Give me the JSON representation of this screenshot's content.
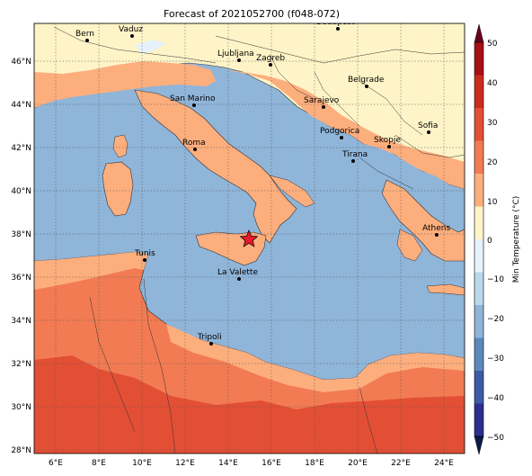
{
  "title": "Forecast of 2021052700 (f048-072)",
  "colorbar": {
    "label": "Min Temperature (°C)",
    "ticks": [
      "50",
      "40",
      "30",
      "20",
      "10",
      "0",
      "−10",
      "−20",
      "−30",
      "−40",
      "−50"
    ],
    "colors": [
      "#67001f",
      "#b2182b",
      "#d6604d",
      "#f4a582",
      "#fddbc7",
      "#f7f7f7",
      "#d1e5f0",
      "#92c5de",
      "#4393c3",
      "#2166ac",
      "#053061"
    ],
    "bands": [
      "#a50f15",
      "#cb2b1f",
      "#e34f35",
      "#f27b53",
      "#fdae7d",
      "#fff4c7",
      "#e6f2fa",
      "#b9d8ec",
      "#8fb5d9",
      "#5c89bd",
      "#3d5ba5",
      "#2c2f8f"
    ]
  },
  "axes": {
    "x_ticks": [
      "6°E",
      "8°E",
      "10°E",
      "12°E",
      "14°E",
      "16°E",
      "18°E",
      "20°E",
      "22°E",
      "24°E"
    ],
    "y_ticks": [
      "46°N",
      "44°N",
      "42°N",
      "40°N",
      "38°N",
      "36°N",
      "34°N",
      "32°N",
      "30°N",
      "28°N"
    ]
  },
  "cities": [
    {
      "name": "Bern"
    },
    {
      "name": "Vaduz"
    },
    {
      "name": "Budapest"
    },
    {
      "name": "Ljubljana"
    },
    {
      "name": "Zagreb"
    },
    {
      "name": "Belgrade"
    },
    {
      "name": "San Marino"
    },
    {
      "name": "Sarajevo"
    },
    {
      "name": "Sofia"
    },
    {
      "name": "Roma"
    },
    {
      "name": "Podgorica"
    },
    {
      "name": "Skopje"
    },
    {
      "name": "Tirana"
    },
    {
      "name": "Athens"
    },
    {
      "name": "Tunis"
    },
    {
      "name": "La Valette"
    },
    {
      "name": "Tripoli"
    }
  ],
  "colors": {
    "sea": "#8fb5d9",
    "land_cool": "#fff4c7",
    "land_warm": "#fdae7d",
    "land_hot": "#f27b53",
    "land_hotter": "#e34f35",
    "marker": "#e8192c"
  }
}
